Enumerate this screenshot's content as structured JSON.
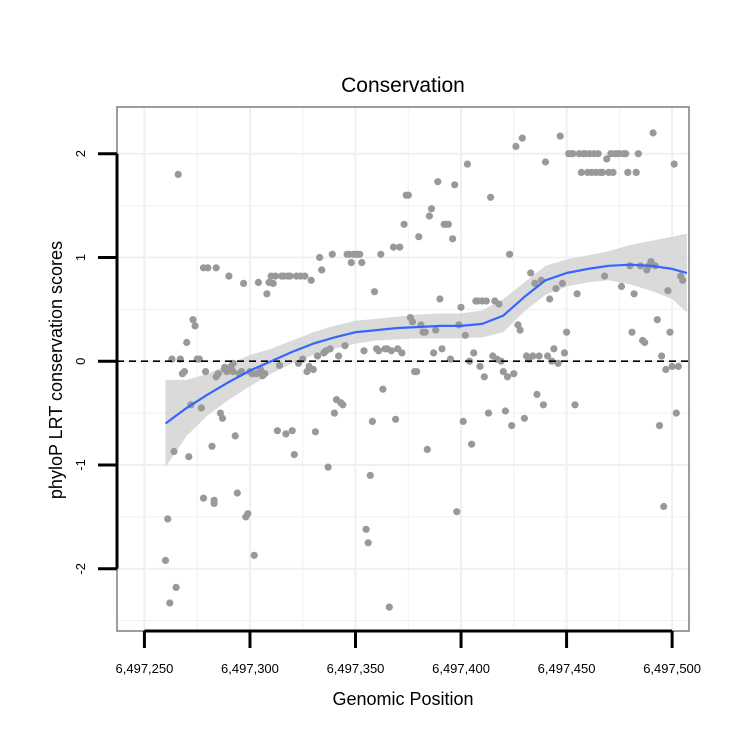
{
  "chart_data": {
    "type": "scatter",
    "title": "Conservation",
    "xlabel": "Genomic Position",
    "ylabel": "phyloP LRT conservation scores",
    "xlim": [
      6497237,
      6497508
    ],
    "ylim": [
      -2.6,
      2.45
    ],
    "x_ticks": [
      6497250,
      6497300,
      6497350,
      6497400,
      6497450,
      6497500
    ],
    "x_tick_labels": [
      "6,497,250",
      "6,497,300",
      "6,497,350",
      "6,497,400",
      "6,497,450",
      "6,497,500"
    ],
    "y_ticks": [
      -2,
      -1,
      0,
      1,
      2
    ],
    "y_tick_labels": [
      "-2",
      "-1",
      "0",
      "1",
      "2"
    ],
    "reference_line": {
      "y": 0,
      "style": "dashed"
    },
    "colors": {
      "points": "#999999",
      "smooth_line": "#3366FF",
      "confidence_band": "#d3d3d3",
      "grid": "#f0f0f0",
      "panel_border": "#7f7f7f"
    },
    "series": [
      {
        "name": "scores",
        "points": [
          [
            6497260,
            -1.92
          ],
          [
            6497261,
            -1.52
          ],
          [
            6497262,
            -2.33
          ],
          [
            6497264,
            -0.87
          ],
          [
            6497265,
            -2.18
          ],
          [
            6497263,
            0.02
          ],
          [
            6497266,
            1.8
          ],
          [
            6497268,
            -0.12
          ],
          [
            6497269,
            -0.1
          ],
          [
            6497270,
            0.18
          ],
          [
            6497271,
            -0.92
          ],
          [
            6497272,
            -0.42
          ],
          [
            6497273,
            0.4
          ],
          [
            6497274,
            0.34
          ],
          [
            6497275,
            0.02
          ],
          [
            6497276,
            0.02
          ],
          [
            6497277,
            -0.45
          ],
          [
            6497278,
            0.9
          ],
          [
            6497278,
            -1.32
          ],
          [
            6497280,
            0.9
          ],
          [
            6497282,
            -0.82
          ],
          [
            6497283,
            -1.37
          ],
          [
            6497283,
            -1.34
          ],
          [
            6497284,
            0.9
          ],
          [
            6497285,
            -0.12
          ],
          [
            6497286,
            -0.5
          ],
          [
            6497287,
            -0.55
          ],
          [
            6497288,
            -0.08
          ],
          [
            6497289,
            -0.1
          ],
          [
            6497290,
            0.82
          ],
          [
            6497291,
            -0.05
          ],
          [
            6497292,
            -0.02
          ],
          [
            6497292,
            -0.1
          ],
          [
            6497293,
            -0.72
          ],
          [
            6497294,
            -1.27
          ],
          [
            6497295,
            -0.12
          ],
          [
            6497296,
            -0.1
          ],
          [
            6497297,
            0.75
          ],
          [
            6497298,
            -1.5
          ],
          [
            6497299,
            -1.47
          ],
          [
            6497300,
            -0.1
          ],
          [
            6497301,
            -0.12
          ],
          [
            6497302,
            -1.87
          ],
          [
            6497303,
            -0.12
          ],
          [
            6497304,
            0.76
          ],
          [
            6497305,
            -0.08
          ],
          [
            6497306,
            -0.14
          ],
          [
            6497307,
            -0.12
          ],
          [
            6497308,
            0.65
          ],
          [
            6497309,
            0.76
          ],
          [
            6497310,
            0.82
          ],
          [
            6497311,
            0.75
          ],
          [
            6497312,
            0.82
          ],
          [
            6497313,
            -0.67
          ],
          [
            6497314,
            -0.04
          ],
          [
            6497315,
            0.82
          ],
          [
            6497316,
            0.82
          ],
          [
            6497317,
            -0.7
          ],
          [
            6497318,
            0.82
          ],
          [
            6497319,
            0.82
          ],
          [
            6497320,
            -0.67
          ],
          [
            6497321,
            -0.9
          ],
          [
            6497322,
            0.82
          ],
          [
            6497323,
            -0.02
          ],
          [
            6497324,
            0.82
          ],
          [
            6497325,
            0.02
          ],
          [
            6497326,
            0.82
          ],
          [
            6497327,
            -0.1
          ],
          [
            6497328,
            -0.05
          ],
          [
            6497329,
            0.78
          ],
          [
            6497330,
            -0.08
          ],
          [
            6497331,
            -0.68
          ],
          [
            6497332,
            0.05
          ],
          [
            6497333,
            1.0
          ],
          [
            6497334,
            0.88
          ],
          [
            6497335,
            0.08
          ],
          [
            6497336,
            0.1
          ],
          [
            6497337,
            -1.02
          ],
          [
            6497338,
            0.12
          ],
          [
            6497339,
            1.03
          ],
          [
            6497340,
            -0.5
          ],
          [
            6497341,
            -0.37
          ],
          [
            6497342,
            0.05
          ],
          [
            6497343,
            -0.4
          ],
          [
            6497344,
            -0.42
          ],
          [
            6497345,
            0.15
          ],
          [
            6497346,
            1.03
          ],
          [
            6497347,
            1.03
          ],
          [
            6497348,
            0.95
          ],
          [
            6497349,
            1.03
          ],
          [
            6497350,
            1.03
          ],
          [
            6497351,
            1.03
          ],
          [
            6497352,
            1.03
          ],
          [
            6497353,
            0.95
          ],
          [
            6497354,
            0.1
          ],
          [
            6497355,
            -1.62
          ],
          [
            6497356,
            -1.75
          ],
          [
            6497357,
            -1.1
          ],
          [
            6497358,
            -0.58
          ],
          [
            6497359,
            0.67
          ],
          [
            6497360,
            0.12
          ],
          [
            6497361,
            0.1
          ],
          [
            6497362,
            1.03
          ],
          [
            6497363,
            -0.27
          ],
          [
            6497364,
            0.12
          ],
          [
            6497365,
            0.12
          ],
          [
            6497366,
            -2.37
          ],
          [
            6497367,
            0.1
          ],
          [
            6497368,
            1.1
          ],
          [
            6497369,
            -0.56
          ],
          [
            6497370,
            0.12
          ],
          [
            6497371,
            1.1
          ],
          [
            6497372,
            0.08
          ],
          [
            6497373,
            1.32
          ],
          [
            6497374,
            1.6
          ],
          [
            6497375,
            1.6
          ],
          [
            6497376,
            0.42
          ],
          [
            6497377,
            0.38
          ],
          [
            6497378,
            -0.1
          ],
          [
            6497379,
            -0.1
          ],
          [
            6497380,
            1.2
          ],
          [
            6497381,
            0.35
          ],
          [
            6497382,
            0.28
          ],
          [
            6497383,
            0.28
          ],
          [
            6497384,
            -0.85
          ],
          [
            6497385,
            1.4
          ],
          [
            6497386,
            1.47
          ],
          [
            6497387,
            0.08
          ],
          [
            6497388,
            0.3
          ],
          [
            6497389,
            1.73
          ],
          [
            6497390,
            0.6
          ],
          [
            6497391,
            0.12
          ],
          [
            6497392,
            1.32
          ],
          [
            6497393,
            1.32
          ],
          [
            6497394,
            1.32
          ],
          [
            6497395,
            0.02
          ],
          [
            6497396,
            1.18
          ],
          [
            6497397,
            1.7
          ],
          [
            6497398,
            -1.45
          ],
          [
            6497399,
            0.35
          ],
          [
            6497400,
            0.52
          ],
          [
            6497401,
            -0.58
          ],
          [
            6497402,
            0.25
          ],
          [
            6497403,
            1.9
          ],
          [
            6497404,
            0.0
          ],
          [
            6497405,
            -0.8
          ],
          [
            6497406,
            0.08
          ],
          [
            6497407,
            0.58
          ],
          [
            6497408,
            0.58
          ],
          [
            6497409,
            -0.05
          ],
          [
            6497410,
            0.58
          ],
          [
            6497411,
            -0.15
          ],
          [
            6497412,
            0.58
          ],
          [
            6497413,
            -0.5
          ],
          [
            6497414,
            1.58
          ],
          [
            6497415,
            0.05
          ],
          [
            6497416,
            0.58
          ],
          [
            6497417,
            0.02
          ],
          [
            6497418,
            0.55
          ],
          [
            6497419,
            0.0
          ],
          [
            6497420,
            -0.1
          ],
          [
            6497421,
            -0.48
          ],
          [
            6497422,
            -0.15
          ],
          [
            6497423,
            1.03
          ],
          [
            6497424,
            -0.62
          ],
          [
            6497425,
            -0.12
          ],
          [
            6497426,
            2.07
          ],
          [
            6497427,
            0.35
          ],
          [
            6497428,
            0.3
          ],
          [
            6497429,
            2.15
          ],
          [
            6497430,
            -0.55
          ],
          [
            6497431,
            0.05
          ],
          [
            6497432,
            0.02
          ],
          [
            6497433,
            0.85
          ],
          [
            6497434,
            0.05
          ],
          [
            6497435,
            0.75
          ],
          [
            6497436,
            -0.32
          ],
          [
            6497437,
            0.05
          ],
          [
            6497438,
            0.78
          ],
          [
            6497439,
            -0.42
          ],
          [
            6497440,
            1.92
          ],
          [
            6497441,
            0.05
          ],
          [
            6497442,
            0.6
          ],
          [
            6497443,
            0.0
          ],
          [
            6497444,
            0.12
          ],
          [
            6497445,
            0.7
          ],
          [
            6497446,
            -0.02
          ],
          [
            6497447,
            2.17
          ],
          [
            6497448,
            0.75
          ],
          [
            6497449,
            0.08
          ],
          [
            6497450,
            0.28
          ],
          [
            6497451,
            2.0
          ],
          [
            6497452,
            2.0
          ],
          [
            6497453,
            2.0
          ],
          [
            6497454,
            -0.42
          ],
          [
            6497455,
            0.65
          ],
          [
            6497456,
            2.0
          ],
          [
            6497457,
            1.82
          ],
          [
            6497458,
            2.0
          ],
          [
            6497459,
            2.0
          ],
          [
            6497460,
            1.82
          ],
          [
            6497461,
            2.0
          ],
          [
            6497462,
            1.82
          ],
          [
            6497463,
            2.0
          ],
          [
            6497464,
            1.82
          ],
          [
            6497465,
            2.0
          ],
          [
            6497466,
            1.82
          ],
          [
            6497467,
            1.82
          ],
          [
            6497468,
            0.82
          ],
          [
            6497469,
            1.95
          ],
          [
            6497470,
            1.82
          ],
          [
            6497471,
            2.0
          ],
          [
            6497472,
            1.82
          ],
          [
            6497473,
            2.0
          ],
          [
            6497474,
            2.0
          ],
          [
            6497475,
            2.0
          ],
          [
            6497476,
            0.72
          ],
          [
            6497477,
            2.0
          ],
          [
            6497478,
            2.0
          ],
          [
            6497479,
            1.82
          ],
          [
            6497480,
            0.92
          ],
          [
            6497481,
            0.28
          ],
          [
            6497482,
            0.65
          ],
          [
            6497483,
            1.82
          ],
          [
            6497484,
            2.0
          ],
          [
            6497485,
            0.92
          ],
          [
            6497486,
            0.2
          ],
          [
            6497487,
            0.18
          ],
          [
            6497488,
            0.88
          ],
          [
            6497489,
            0.92
          ],
          [
            6497490,
            0.96
          ],
          [
            6497491,
            2.2
          ],
          [
            6497492,
            0.92
          ],
          [
            6497493,
            0.4
          ],
          [
            6497494,
            -0.62
          ],
          [
            6497495,
            0.05
          ],
          [
            6497496,
            -1.4
          ],
          [
            6497497,
            -0.08
          ],
          [
            6497498,
            0.68
          ],
          [
            6497499,
            0.28
          ],
          [
            6497500,
            -0.05
          ],
          [
            6497501,
            1.9
          ],
          [
            6497502,
            -0.5
          ],
          [
            6497503,
            -0.05
          ],
          [
            6497504,
            0.82
          ],
          [
            6497505,
            0.78
          ],
          [
            6497267,
            0.02
          ],
          [
            6497279,
            -0.1
          ],
          [
            6497284,
            -0.15
          ],
          [
            6497288,
            -0.06
          ]
        ]
      },
      {
        "name": "loess_fit",
        "points": [
          [
            6497260,
            -0.6
          ],
          [
            6497270,
            -0.45
          ],
          [
            6497280,
            -0.32
          ],
          [
            6497290,
            -0.2
          ],
          [
            6497300,
            -0.09
          ],
          [
            6497310,
            0.0
          ],
          [
            6497320,
            0.09
          ],
          [
            6497330,
            0.17
          ],
          [
            6497340,
            0.23
          ],
          [
            6497350,
            0.28
          ],
          [
            6497360,
            0.3
          ],
          [
            6497370,
            0.32
          ],
          [
            6497380,
            0.33
          ],
          [
            6497390,
            0.34
          ],
          [
            6497400,
            0.34
          ],
          [
            6497410,
            0.36
          ],
          [
            6497420,
            0.44
          ],
          [
            6497430,
            0.62
          ],
          [
            6497440,
            0.78
          ],
          [
            6497450,
            0.85
          ],
          [
            6497460,
            0.89
          ],
          [
            6497470,
            0.92
          ],
          [
            6497480,
            0.93
          ],
          [
            6497490,
            0.92
          ],
          [
            6497500,
            0.89
          ],
          [
            6497507,
            0.85
          ]
        ]
      }
    ],
    "confidence_band": {
      "x": [
        6497260,
        6497270,
        6497280,
        6497290,
        6497300,
        6497310,
        6497320,
        6497330,
        6497340,
        6497350,
        6497360,
        6497370,
        6497380,
        6497390,
        6497400,
        6497410,
        6497420,
        6497430,
        6497440,
        6497450,
        6497460,
        6497470,
        6497480,
        6497490,
        6497500,
        6497507
      ],
      "lower": [
        -1.02,
        -0.72,
        -0.52,
        -0.37,
        -0.24,
        -0.12,
        -0.02,
        0.06,
        0.12,
        0.17,
        0.2,
        0.21,
        0.22,
        0.22,
        0.22,
        0.23,
        0.28,
        0.48,
        0.64,
        0.72,
        0.76,
        0.78,
        0.74,
        0.68,
        0.6,
        0.47
      ],
      "upper": [
        -0.18,
        -0.18,
        -0.12,
        -0.03,
        0.06,
        0.12,
        0.2,
        0.28,
        0.34,
        0.39,
        0.41,
        0.43,
        0.45,
        0.46,
        0.46,
        0.49,
        0.6,
        0.76,
        0.92,
        0.98,
        1.02,
        1.06,
        1.12,
        1.16,
        1.2,
        1.23
      ]
    }
  }
}
